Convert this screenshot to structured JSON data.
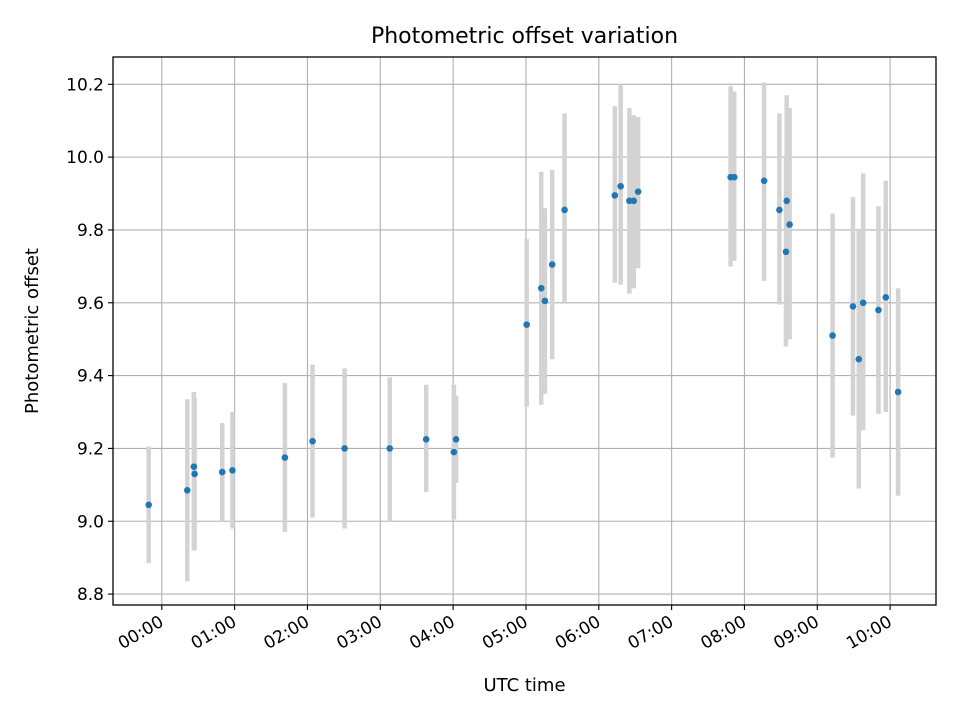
{
  "chart_data": {
    "type": "scatter",
    "title": "Photometric offset variation",
    "xlabel": "UTC time",
    "ylabel": "Photometric offset",
    "x_unit": "hours (UTC)",
    "xlim": [
      -0.67,
      10.63
    ],
    "ylim": [
      8.77,
      10.275
    ],
    "x_ticks": [
      0,
      1,
      2,
      3,
      4,
      5,
      6,
      7,
      8,
      9,
      10
    ],
    "x_tick_labels": [
      "00:00",
      "01:00",
      "02:00",
      "03:00",
      "04:00",
      "05:00",
      "06:00",
      "07:00",
      "08:00",
      "09:00",
      "10:00"
    ],
    "y_ticks": [
      8.8,
      9.0,
      9.2,
      9.4,
      9.6,
      9.8,
      10.0,
      10.2
    ],
    "y_tick_labels": [
      "8.8",
      "9.0",
      "9.2",
      "9.4",
      "9.6",
      "9.8",
      "10.0",
      "10.2"
    ],
    "grid": true,
    "marker_color": "#1f77b4",
    "errorbar_color": "#d3d3d3",
    "points": [
      {
        "x": -0.18,
        "y": 9.045,
        "lo": 8.885,
        "hi": 9.205
      },
      {
        "x": 0.35,
        "y": 9.085,
        "lo": 8.835,
        "hi": 9.335
      },
      {
        "x": 0.44,
        "y": 9.15,
        "lo": 8.92,
        "hi": 9.355
      },
      {
        "x": 0.45,
        "y": 9.13,
        "lo": 8.92,
        "hi": 9.34
      },
      {
        "x": 0.83,
        "y": 9.135,
        "lo": 9.0,
        "hi": 9.27
      },
      {
        "x": 0.97,
        "y": 9.14,
        "lo": 8.98,
        "hi": 9.3
      },
      {
        "x": 1.69,
        "y": 9.175,
        "lo": 8.97,
        "hi": 9.38
      },
      {
        "x": 2.07,
        "y": 9.22,
        "lo": 9.01,
        "hi": 9.43
      },
      {
        "x": 2.51,
        "y": 9.2,
        "lo": 8.98,
        "hi": 9.42
      },
      {
        "x": 3.13,
        "y": 9.2,
        "lo": 9.0,
        "hi": 9.395
      },
      {
        "x": 3.63,
        "y": 9.225,
        "lo": 9.08,
        "hi": 9.375
      },
      {
        "x": 4.01,
        "y": 9.19,
        "lo": 9.005,
        "hi": 9.375
      },
      {
        "x": 4.04,
        "y": 9.225,
        "lo": 9.105,
        "hi": 9.345
      },
      {
        "x": 5.01,
        "y": 9.54,
        "lo": 9.315,
        "hi": 9.775
      },
      {
        "x": 5.21,
        "y": 9.64,
        "lo": 9.32,
        "hi": 9.96
      },
      {
        "x": 5.26,
        "y": 9.605,
        "lo": 9.35,
        "hi": 9.86
      },
      {
        "x": 5.36,
        "y": 9.705,
        "lo": 9.445,
        "hi": 9.965
      },
      {
        "x": 5.53,
        "y": 9.855,
        "lo": 9.6,
        "hi": 10.12
      },
      {
        "x": 6.22,
        "y": 9.895,
        "lo": 9.655,
        "hi": 10.14
      },
      {
        "x": 6.3,
        "y": 9.92,
        "lo": 9.65,
        "hi": 10.2
      },
      {
        "x": 6.42,
        "y": 9.88,
        "lo": 9.625,
        "hi": 10.135
      },
      {
        "x": 6.48,
        "y": 9.88,
        "lo": 9.64,
        "hi": 10.115
      },
      {
        "x": 6.54,
        "y": 9.905,
        "lo": 9.695,
        "hi": 10.11
      },
      {
        "x": 7.81,
        "y": 9.945,
        "lo": 9.7,
        "hi": 10.195
      },
      {
        "x": 7.86,
        "y": 9.945,
        "lo": 9.715,
        "hi": 10.18
      },
      {
        "x": 8.27,
        "y": 9.935,
        "lo": 9.66,
        "hi": 10.205
      },
      {
        "x": 8.48,
        "y": 9.855,
        "lo": 9.595,
        "hi": 10.12
      },
      {
        "x": 8.57,
        "y": 9.74,
        "lo": 9.48,
        "hi": 10.0
      },
      {
        "x": 8.58,
        "y": 9.88,
        "lo": 9.625,
        "hi": 10.17
      },
      {
        "x": 8.62,
        "y": 9.815,
        "lo": 9.5,
        "hi": 10.135
      },
      {
        "x": 9.21,
        "y": 9.51,
        "lo": 9.175,
        "hi": 9.845
      },
      {
        "x": 9.49,
        "y": 9.59,
        "lo": 9.29,
        "hi": 9.89
      },
      {
        "x": 9.57,
        "y": 9.445,
        "lo": 9.09,
        "hi": 9.8
      },
      {
        "x": 9.63,
        "y": 9.6,
        "lo": 9.25,
        "hi": 9.955
      },
      {
        "x": 9.84,
        "y": 9.58,
        "lo": 9.295,
        "hi": 9.865
      },
      {
        "x": 9.94,
        "y": 9.615,
        "lo": 9.3,
        "hi": 9.935
      },
      {
        "x": 10.11,
        "y": 9.355,
        "lo": 9.07,
        "hi": 9.64
      }
    ]
  }
}
